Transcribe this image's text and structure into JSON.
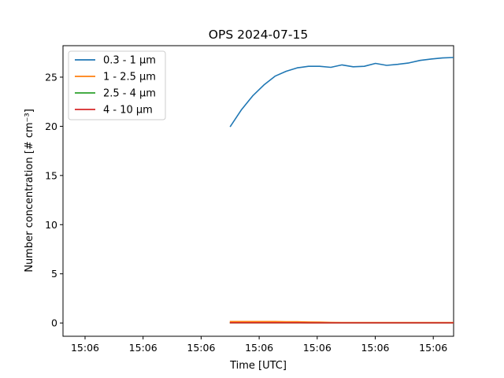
{
  "chart_data": {
    "type": "line",
    "title": "OPS 2024-07-15",
    "xlabel": "Time [UTC]",
    "ylabel": "Number concentration [# cm⁻³]",
    "x_tick_labels": [
      "15:06",
      "15:06",
      "15:06",
      "15:06",
      "15:06",
      "15:06",
      "15:06"
    ],
    "y_ticks": [
      0,
      5,
      10,
      15,
      20,
      25
    ],
    "ylim": [
      -1.35,
      28.2
    ],
    "grid": false,
    "legend_position": "top-left",
    "x": [
      0,
      1,
      2,
      3,
      4,
      5,
      6,
      7,
      8,
      9,
      10,
      11,
      12,
      13,
      14,
      15,
      16,
      17,
      18,
      19,
      20
    ],
    "xlim": [
      -15,
      20
    ],
    "series": [
      {
        "name": "0.3 - 1 µm",
        "color": "#1f77b4",
        "values": [
          20.0,
          21.7,
          23.1,
          24.2,
          25.1,
          25.6,
          25.95,
          26.1,
          26.1,
          26.0,
          26.25,
          26.05,
          26.1,
          26.4,
          26.2,
          26.3,
          26.45,
          26.7,
          26.85,
          26.95,
          27.0
        ]
      },
      {
        "name": "1 - 2.5 µm",
        "color": "#ff7f0e",
        "values": [
          0.15,
          0.15,
          0.15,
          0.15,
          0.15,
          0.13,
          0.12,
          0.1,
          0.08,
          0.06,
          0.05,
          0.05,
          0.05,
          0.04,
          0.04,
          0.04,
          0.04,
          0.04,
          0.04,
          0.04,
          0.04
        ]
      },
      {
        "name": "2.5 - 4 µm",
        "color": "#2ca02c",
        "values": [
          0.02,
          0.02,
          0.02,
          0.02,
          0.02,
          0.02,
          0.02,
          0.01,
          0.01,
          0.01,
          0.01,
          0.01,
          0.01,
          0.01,
          0.01,
          0.01,
          0.01,
          0.01,
          0.01,
          0.01,
          0.01
        ]
      },
      {
        "name": "4 - 10 µm",
        "color": "#d62728",
        "values": [
          0.03,
          0.03,
          0.03,
          0.03,
          0.03,
          0.03,
          0.03,
          0.02,
          0.02,
          0.02,
          0.02,
          0.02,
          0.02,
          0.02,
          0.02,
          0.02,
          0.02,
          0.02,
          0.02,
          0.02,
          0.02
        ]
      }
    ]
  }
}
